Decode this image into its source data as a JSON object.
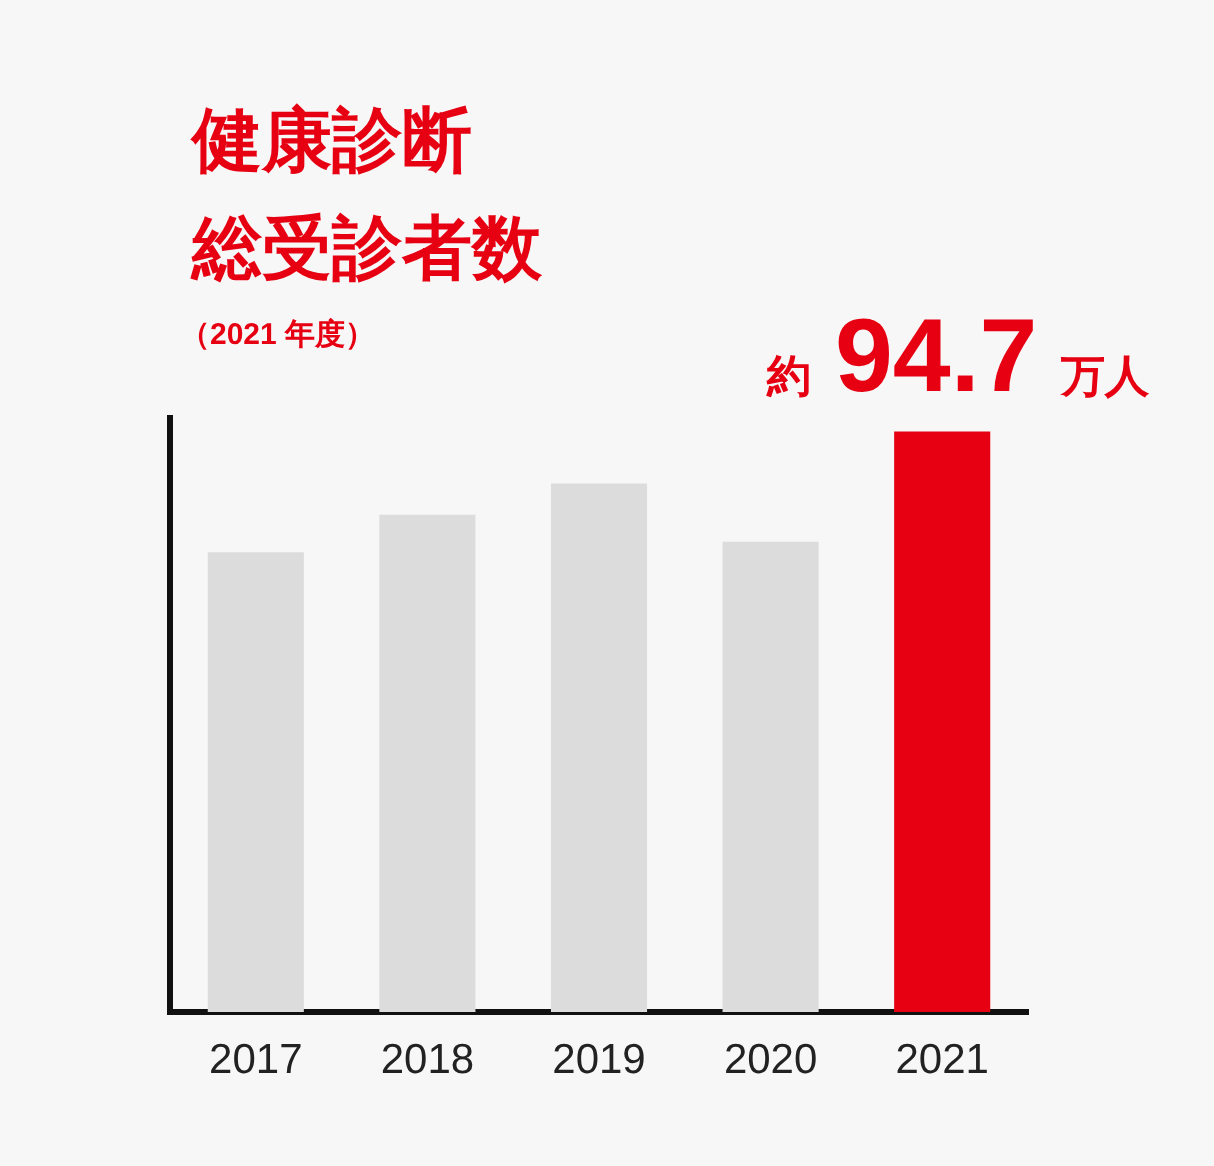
{
  "chart_data": {
    "type": "bar",
    "title": "健康診断総受診者数",
    "subtitle": "（2021 年度）",
    "categories": [
      "2017",
      "2018",
      "2019",
      "2020",
      "2021"
    ],
    "values": [
      75.0,
      81.1,
      86.2,
      76.7,
      94.7
    ],
    "colors": [
      "#dcdcdc",
      "#dcdcdc",
      "#dcdcdc",
      "#dcdcdc",
      "#e60012"
    ],
    "value_labels": [
      null,
      null,
      null,
      null,
      "約94.7万人"
    ],
    "ylim": [
      0,
      96.9
    ],
    "tick_labels": "x"
  }
}
